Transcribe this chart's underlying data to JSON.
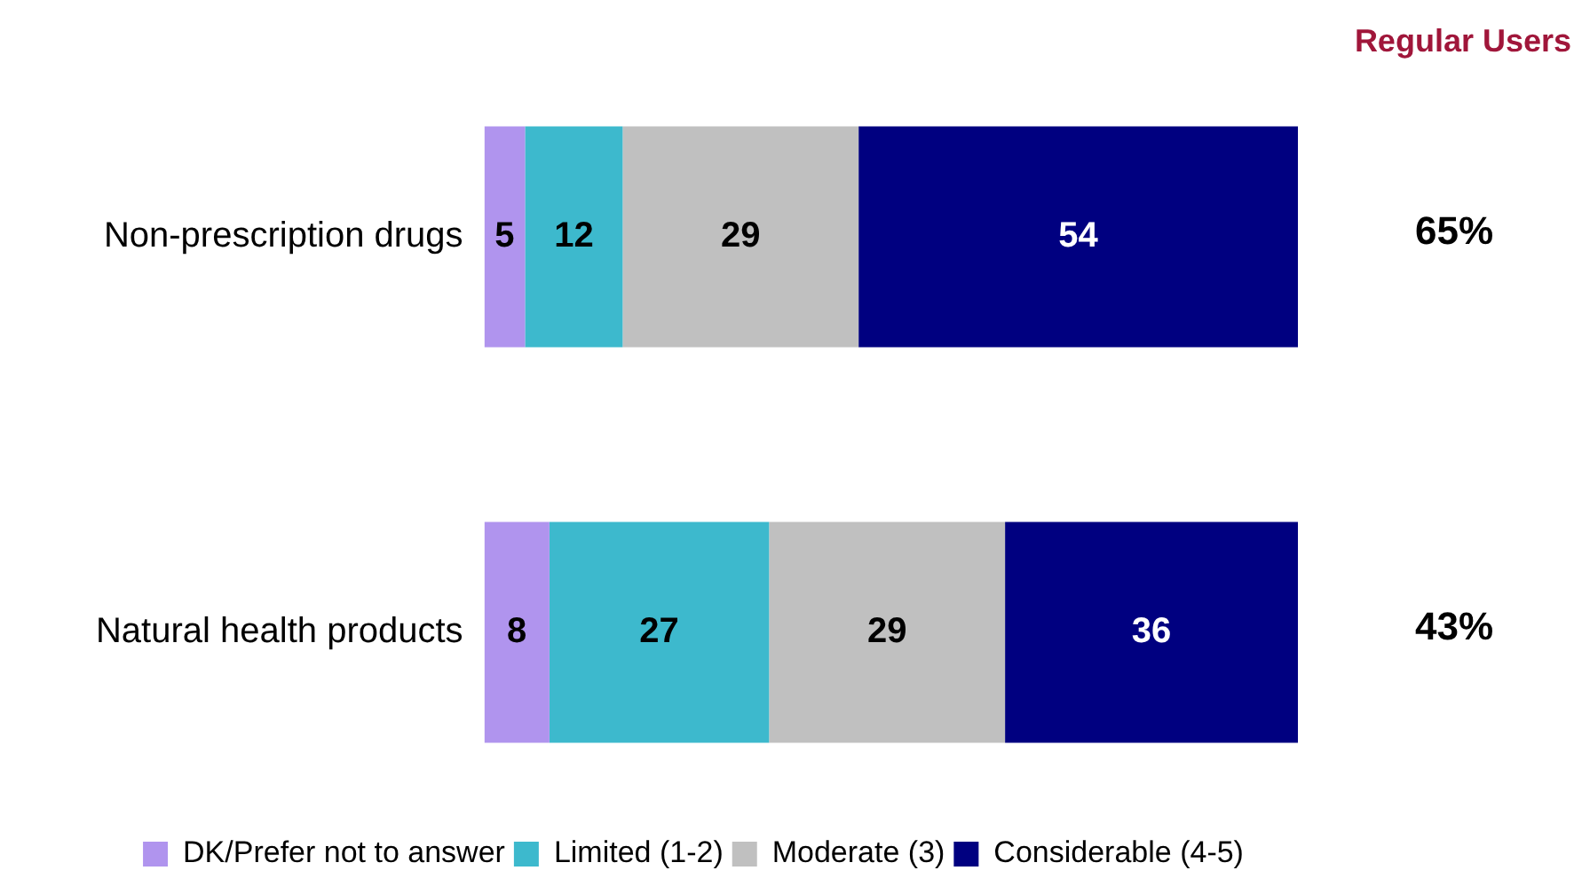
{
  "chart_data": {
    "type": "bar",
    "orientation": "horizontal",
    "stacked": true,
    "categories": [
      "Non-prescription drugs",
      "Natural health products"
    ],
    "series": [
      {
        "name": "DK/Prefer not to answer",
        "color": "#b094ee",
        "values": [
          5,
          8
        ]
      },
      {
        "name": "Limited (1-2)",
        "color": "#3db9cd",
        "values": [
          12,
          27
        ]
      },
      {
        "name": "Moderate (3)",
        "color": "#c0c0c0",
        "values": [
          29,
          29
        ]
      },
      {
        "name": "Considerable (4-5)",
        "color": "#000080",
        "values": [
          54,
          36
        ]
      }
    ],
    "xlim": [
      0,
      100
    ],
    "tick_labels": "y",
    "data_labels": true,
    "legend": "bottom",
    "annotations": [
      "Regular Users",
      "65%",
      "43%"
    ]
  }
}
